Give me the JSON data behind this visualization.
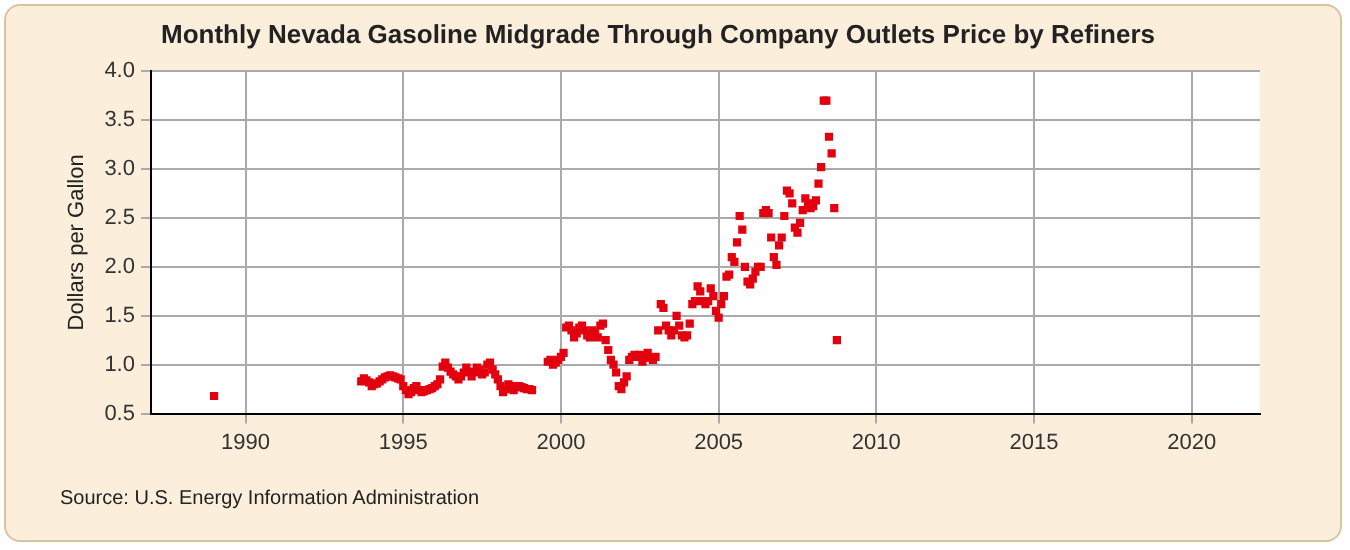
{
  "chart_data": {
    "type": "scatter",
    "title": "Monthly Nevada Gasoline Midgrade Through Company Outlets Price by Refiners",
    "ylabel": "Dollars per Gallon",
    "annotations": [
      "Source: U.S. Energy Information Administration"
    ],
    "xlim": [
      "1987-01",
      "2022-03"
    ],
    "xticks": [
      "1990",
      "1995",
      "2000",
      "2005",
      "2010",
      "2015",
      "2020"
    ],
    "ylim": [
      0.5,
      4.0
    ],
    "yticks": [
      {
        "value": 0.5,
        "label": "0.5"
      },
      {
        "value": 1,
        "label": "1.0"
      },
      {
        "value": 1.5,
        "label": "1.5"
      },
      {
        "value": 2,
        "label": "2.0"
      },
      {
        "value": 2.5,
        "label": "2.5"
      },
      {
        "value": 3,
        "label": "3.0"
      },
      {
        "value": 3.5,
        "label": "3.5"
      },
      {
        "value": 4,
        "label": "4.0"
      }
    ],
    "grid": true,
    "legend": false,
    "marker": "square",
    "series": [
      {
        "color": "#e3000f",
        "x": [
          "1989-01",
          "1993-09",
          "1993-10",
          "1993-11",
          "1993-12",
          "1994-01",
          "1994-02",
          "1994-03",
          "1994-04",
          "1994-05",
          "1994-06",
          "1994-07",
          "1994-08",
          "1994-09",
          "1994-10",
          "1994-11",
          "1994-12",
          "1995-01",
          "1995-02",
          "1995-03",
          "1995-04",
          "1995-05",
          "1995-06",
          "1995-07",
          "1995-08",
          "1995-09",
          "1995-10",
          "1995-11",
          "1995-12",
          "1996-01",
          "1996-02",
          "1996-03",
          "1996-04",
          "1996-05",
          "1996-06",
          "1996-07",
          "1996-08",
          "1996-09",
          "1996-10",
          "1996-11",
          "1996-12",
          "1997-01",
          "1997-02",
          "1997-03",
          "1997-04",
          "1997-05",
          "1997-06",
          "1997-07",
          "1997-08",
          "1997-09",
          "1997-10",
          "1997-11",
          "1997-12",
          "1998-01",
          "1998-02",
          "1998-03",
          "1998-04",
          "1998-05",
          "1998-06",
          "1998-07",
          "1998-08",
          "1998-09",
          "1998-10",
          "1998-11",
          "1998-12",
          "1999-01",
          "1999-02",
          "1999-08",
          "1999-09",
          "1999-10",
          "1999-11",
          "1999-12",
          "2000-01",
          "2000-02",
          "2000-03",
          "2000-04",
          "2000-05",
          "2000-06",
          "2000-07",
          "2000-08",
          "2000-09",
          "2000-10",
          "2000-11",
          "2000-12",
          "2001-01",
          "2001-02",
          "2001-03",
          "2001-04",
          "2001-05",
          "2001-06",
          "2001-07",
          "2001-08",
          "2001-09",
          "2001-10",
          "2001-11",
          "2001-12",
          "2002-01",
          "2002-02",
          "2002-03",
          "2002-04",
          "2002-05",
          "2002-06",
          "2002-07",
          "2002-08",
          "2002-09",
          "2002-10",
          "2002-11",
          "2002-12",
          "2003-01",
          "2003-02",
          "2003-03",
          "2003-04",
          "2003-05",
          "2003-06",
          "2003-07",
          "2003-08",
          "2003-09",
          "2003-10",
          "2003-11",
          "2003-12",
          "2004-01",
          "2004-02",
          "2004-03",
          "2004-04",
          "2004-05",
          "2004-06",
          "2004-07",
          "2004-08",
          "2004-09",
          "2004-10",
          "2004-11",
          "2004-12",
          "2005-01",
          "2005-02",
          "2005-03",
          "2005-04",
          "2005-05",
          "2005-06",
          "2005-07",
          "2005-08",
          "2005-09",
          "2005-10",
          "2005-11",
          "2005-12",
          "2006-01",
          "2006-02",
          "2006-03",
          "2006-04",
          "2006-05",
          "2006-06",
          "2006-07",
          "2006-08",
          "2006-09",
          "2006-10",
          "2006-11",
          "2006-12",
          "2007-01",
          "2007-02",
          "2007-03",
          "2007-04",
          "2007-05",
          "2007-06",
          "2007-07",
          "2007-08",
          "2007-09",
          "2007-10",
          "2007-11",
          "2007-12",
          "2008-01",
          "2008-02",
          "2008-03",
          "2008-04",
          "2008-05",
          "2008-06",
          "2008-07",
          "2008-08",
          "2008-09",
          "2008-10"
        ],
        "values": [
          0.68,
          0.83,
          0.86,
          0.84,
          0.82,
          0.78,
          0.8,
          0.81,
          0.83,
          0.85,
          0.87,
          0.88,
          0.89,
          0.88,
          0.87,
          0.86,
          0.85,
          0.78,
          0.74,
          0.7,
          0.72,
          0.76,
          0.78,
          0.74,
          0.72,
          0.73,
          0.74,
          0.75,
          0.76,
          0.78,
          0.8,
          0.85,
          0.98,
          1.02,
          0.97,
          0.93,
          0.9,
          0.88,
          0.85,
          0.88,
          0.92,
          0.97,
          0.93,
          0.88,
          0.92,
          0.97,
          0.95,
          0.9,
          0.92,
          1.0,
          1.02,
          0.95,
          0.9,
          0.85,
          0.78,
          0.72,
          0.75,
          0.8,
          0.78,
          0.74,
          0.77,
          0.78,
          0.77,
          0.76,
          0.75,
          0.75,
          0.74,
          1.03,
          1.05,
          1.0,
          1.02,
          1.05,
          1.08,
          1.12,
          1.38,
          1.4,
          1.35,
          1.28,
          1.32,
          1.38,
          1.4,
          1.35,
          1.3,
          1.28,
          1.35,
          1.32,
          1.28,
          1.4,
          1.42,
          1.25,
          1.15,
          1.05,
          1.0,
          0.92,
          0.78,
          0.75,
          0.82,
          0.88,
          1.05,
          1.08,
          1.1,
          1.08,
          1.1,
          1.03,
          1.08,
          1.12,
          1.07,
          1.05,
          1.08,
          1.35,
          1.62,
          1.58,
          1.4,
          1.35,
          1.3,
          1.35,
          1.5,
          1.4,
          1.3,
          1.28,
          1.3,
          1.42,
          1.62,
          1.65,
          1.8,
          1.75,
          1.65,
          1.62,
          1.65,
          1.78,
          1.7,
          1.55,
          1.48,
          1.62,
          1.7,
          1.9,
          1.92,
          2.1,
          2.05,
          2.25,
          2.52,
          2.38,
          2.0,
          1.85,
          1.82,
          1.88,
          1.95,
          2.0,
          2.0,
          2.55,
          2.58,
          2.55,
          2.3,
          2.1,
          2.02,
          2.22,
          2.3,
          2.52,
          2.78,
          2.75,
          2.65,
          2.4,
          2.35,
          2.45,
          2.58,
          2.7,
          2.65,
          2.6,
          2.62,
          2.68,
          2.85,
          3.02,
          3.7,
          3.7,
          3.33,
          3.16,
          2.6,
          1.25
        ]
      }
    ]
  }
}
